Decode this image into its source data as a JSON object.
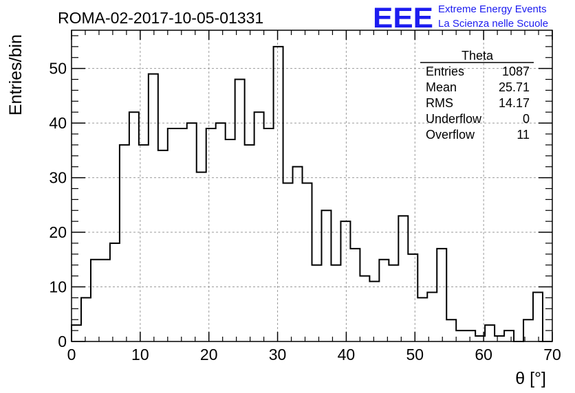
{
  "header": {
    "title": "ROMA-02-2017-10-05-01331",
    "logo_letters": "EEE",
    "logo_line1": "Extreme Energy Events",
    "logo_line2": "La Scienza nelle Scuole"
  },
  "stats_box": {
    "title": "Theta",
    "rows": [
      {
        "label": "Entries",
        "value": "1087"
      },
      {
        "label": "Mean",
        "value": "25.71"
      },
      {
        "label": "RMS",
        "value": "14.17"
      },
      {
        "label": "Underflow",
        "value": "0"
      },
      {
        "label": "Overflow",
        "value": "11"
      }
    ]
  },
  "colors": {
    "line": "#000000",
    "grid": "#9a9a9a",
    "logo": "#1c1cf0"
  },
  "chart_data": {
    "type": "bar",
    "style": "step-histogram",
    "grid": true,
    "xlabel": "θ [°]",
    "ylabel": "Entries/bin",
    "xlim": [
      0,
      70
    ],
    "ylim": [
      0,
      57
    ],
    "bin_width": 1.4,
    "x_ticks": [
      "0",
      "10",
      "20",
      "30",
      "40",
      "50",
      "60",
      "70"
    ],
    "y_ticks": [
      "0",
      "10",
      "20",
      "30",
      "40",
      "50"
    ],
    "values": [
      3,
      8,
      15,
      15,
      18,
      36,
      42,
      36,
      49,
      35,
      39,
      39,
      40,
      31,
      39,
      40,
      37,
      48,
      36,
      42,
      39,
      54,
      29,
      32,
      29,
      14,
      24,
      14,
      22,
      17,
      12,
      11,
      15,
      14,
      23,
      16,
      8,
      9,
      17,
      4,
      2,
      2,
      1,
      3,
      1,
      2,
      0,
      4,
      9,
      0
    ]
  }
}
